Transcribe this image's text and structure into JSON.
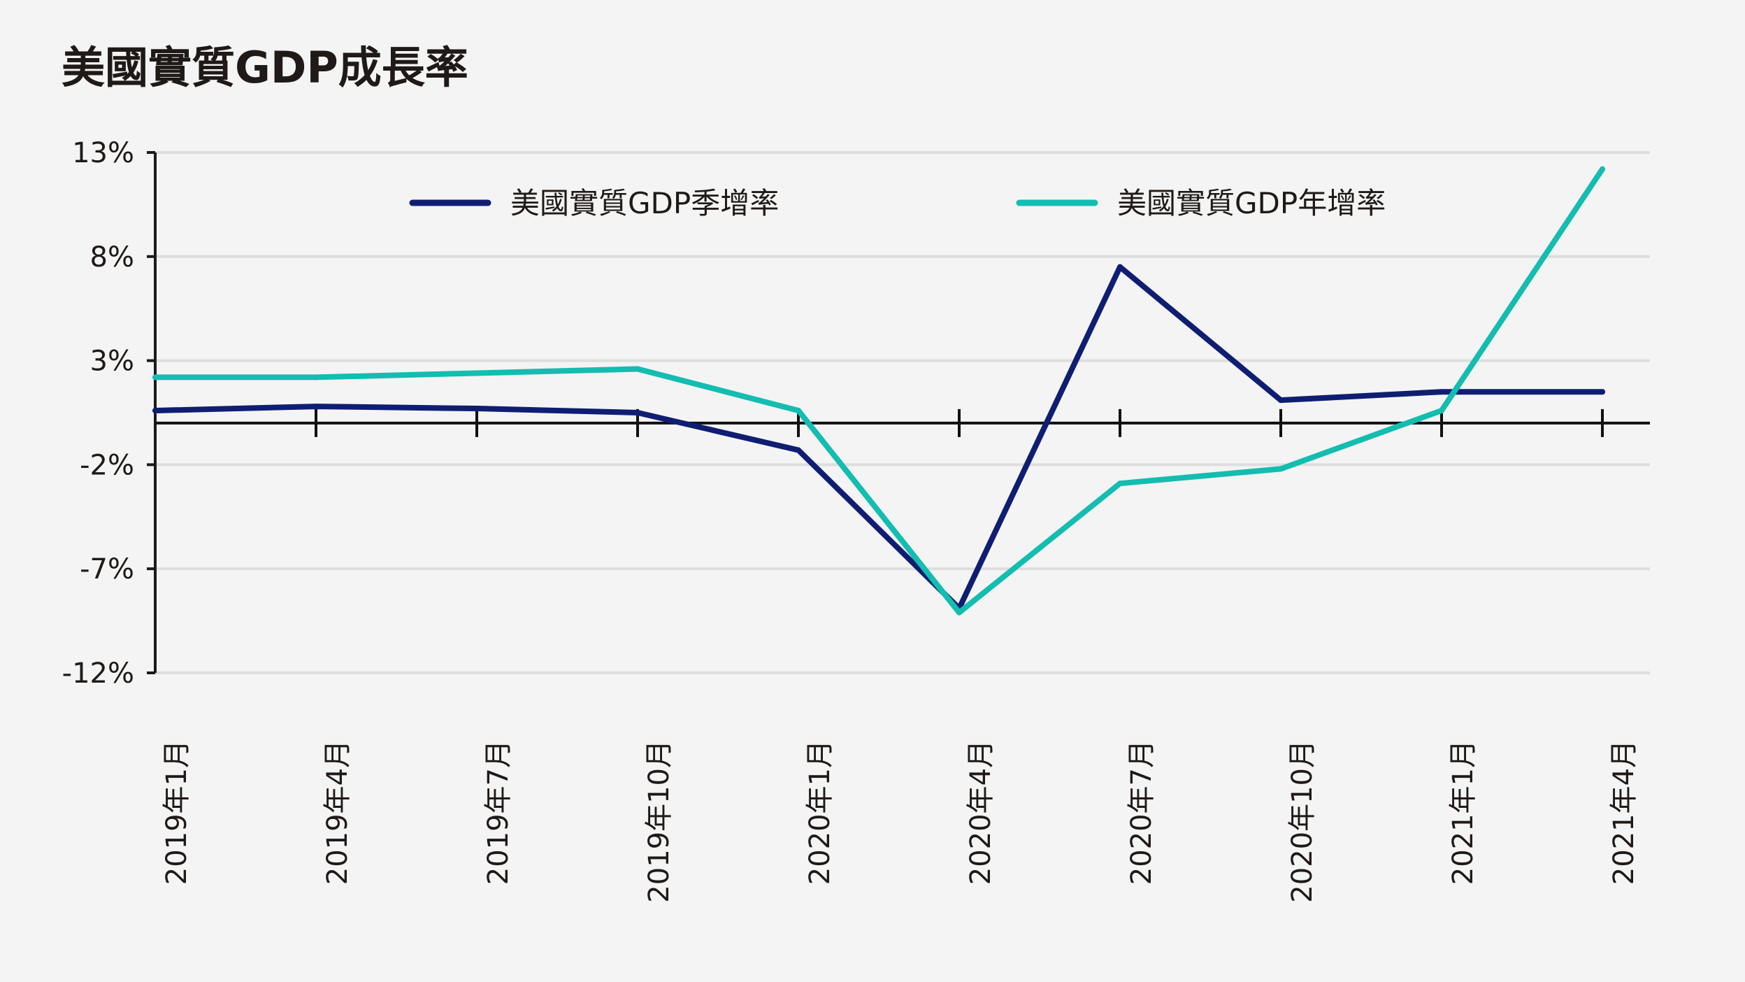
{
  "chart_data": {
    "type": "line",
    "title": "美國實質GDP成長率",
    "xlabel": "",
    "ylabel": "",
    "categories": [
      "2019年1月",
      "2019年4月",
      "2019年7月",
      "2019年10月",
      "2020年1月",
      "2020年4月",
      "2020年7月",
      "2020年10月",
      "2021年1月",
      "2021年4月"
    ],
    "y_ticks": [
      "13%",
      "8%",
      "3%",
      "-2%",
      "-7%",
      "-12%"
    ],
    "y_tick_values": [
      13,
      8,
      3,
      -2,
      -7,
      -12
    ],
    "ylim": [
      -12,
      13
    ],
    "grid": true,
    "legend_position": "top",
    "series": [
      {
        "name": "美國實質GDP季增率",
        "color": "#0f1e72",
        "values": [
          0.6,
          0.8,
          0.7,
          0.5,
          -1.3,
          -8.9,
          7.5,
          1.1,
          1.5,
          1.5
        ]
      },
      {
        "name": "美國實質GDP年增率",
        "color": "#13bdb0",
        "values": [
          2.2,
          2.2,
          2.4,
          2.6,
          0.6,
          -9.1,
          -2.9,
          -2.2,
          0.6,
          12.2
        ]
      }
    ]
  }
}
